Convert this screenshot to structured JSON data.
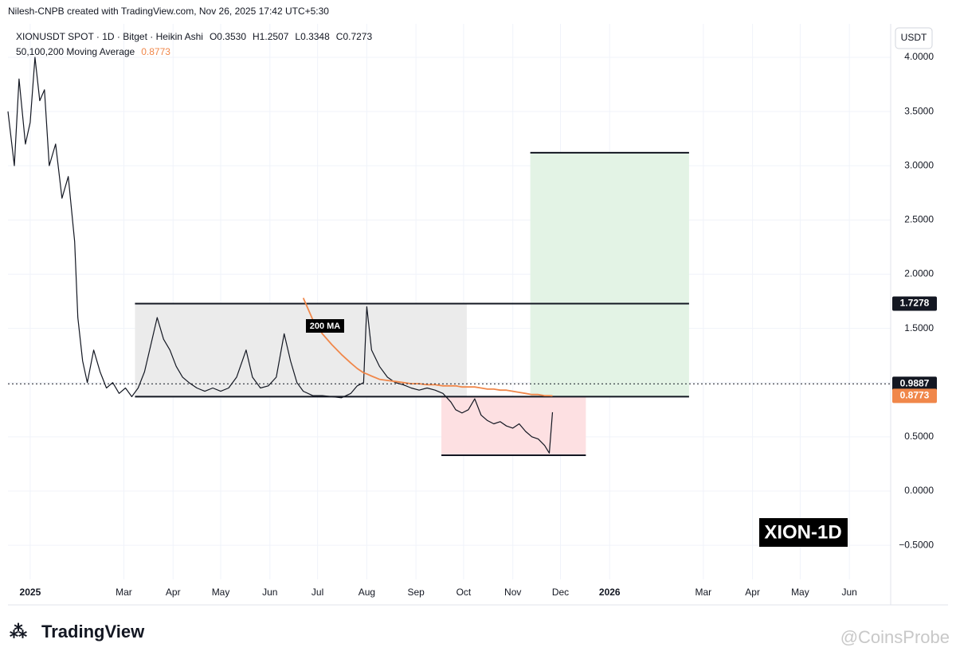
{
  "chart_data": {
    "type": "line",
    "header": "Nilesh-CNPB created with TradingView.com, Nov 26, 2025 17:42 UTC+5:30",
    "symbol": "XIONUSDT SPOT · 1D · Bitget · Heikin Ashi",
    "ohlc": [
      "O0.3530",
      "H1.2507",
      "L0.3348",
      "C0.7273"
    ],
    "indicator": "50,100,200 Moving Average",
    "indicator_value": 0.8773,
    "currency": "USDT",
    "annotation": "200 MA",
    "tag": "XION-1D",
    "logo": "TradingView",
    "watermark": "@CoinsProbe",
    "x": [
      -14,
      -10,
      -7,
      -3,
      0,
      3,
      6,
      9,
      12,
      16,
      20,
      24,
      28,
      30,
      33,
      36,
      40,
      44,
      48,
      52,
      56,
      60,
      64,
      68,
      72,
      76,
      80,
      84,
      88,
      92,
      96,
      100,
      105,
      110,
      115,
      120,
      125,
      130,
      136,
      140,
      145,
      150,
      155,
      160,
      164,
      168,
      172,
      178,
      184,
      190,
      196,
      202,
      206,
      210,
      212,
      215,
      220,
      225,
      230,
      235,
      240,
      245,
      250,
      255,
      260,
      265,
      268,
      272,
      276,
      280,
      284,
      288,
      292,
      296,
      300,
      304,
      308,
      312,
      316,
      320,
      324,
      327,
      329
    ],
    "series": [
      {
        "color": "#131722",
        "values": [
          3.5,
          3.0,
          3.8,
          3.2,
          3.4,
          4.0,
          3.6,
          3.7,
          3.0,
          3.2,
          2.7,
          2.9,
          2.3,
          1.6,
          1.2,
          1.0,
          1.3,
          1.1,
          0.95,
          1.0,
          0.9,
          0.95,
          0.87,
          0.95,
          1.1,
          1.35,
          1.6,
          1.4,
          1.3,
          1.15,
          1.05,
          1.0,
          0.95,
          0.92,
          0.95,
          0.92,
          0.95,
          1.05,
          1.3,
          1.05,
          0.95,
          0.97,
          1.05,
          1.45,
          1.2,
          1.0,
          0.92,
          0.88,
          0.88,
          0.87,
          0.86,
          0.9,
          0.97,
          1.0,
          1.7,
          1.3,
          1.15,
          1.05,
          1.0,
          0.98,
          0.95,
          0.93,
          0.95,
          0.93,
          0.9,
          0.82,
          0.75,
          0.72,
          0.75,
          0.85,
          0.7,
          0.65,
          0.62,
          0.64,
          0.6,
          0.58,
          0.62,
          0.55,
          0.5,
          0.48,
          0.42,
          0.35,
          0.7273
        ]
      },
      {
        "name": "200 MA",
        "color": "#f0874a",
        "x": [
          172,
          178,
          184,
          190,
          196,
          202,
          206,
          210,
          212,
          215,
          220,
          225,
          230,
          235,
          240,
          245,
          250,
          255,
          260,
          265,
          268,
          272,
          276,
          280,
          284,
          288,
          292,
          296,
          300,
          304,
          308,
          312,
          316,
          320,
          324,
          327,
          329
        ],
        "values": [
          1.78,
          1.58,
          1.45,
          1.35,
          1.26,
          1.18,
          1.13,
          1.09,
          1.08,
          1.06,
          1.03,
          1.02,
          1.01,
          1.0,
          0.99,
          0.99,
          0.98,
          0.98,
          0.97,
          0.97,
          0.97,
          0.96,
          0.96,
          0.96,
          0.95,
          0.94,
          0.94,
          0.93,
          0.93,
          0.92,
          0.91,
          0.9,
          0.89,
          0.89,
          0.88,
          0.88,
          0.8773
        ]
      }
    ],
    "zones": [
      {
        "x": [
          66,
          275
        ],
        "y": [
          0.87,
          1.7278
        ],
        "color": "#ebebeb"
      },
      {
        "x": [
          259,
          350
        ],
        "y": [
          0.33,
          0.87
        ],
        "color": "#fde0e2"
      },
      {
        "x": [
          315,
          415
        ],
        "y": [
          0.87,
          3.12
        ],
        "color": "#e3f3e5"
      }
    ],
    "levels": [
      {
        "x": [
          66,
          415
        ],
        "value": 1.7278
      },
      {
        "x": [
          66,
          415
        ],
        "value": 0.87
      },
      {
        "x": [
          259,
          350
        ],
        "value": 0.33
      },
      {
        "x": [
          315,
          415
        ],
        "value": 3.12
      }
    ],
    "price_labels": [
      {
        "value": 1.7278,
        "color": "#131722"
      },
      {
        "value": 0.9887,
        "color": "#131722",
        "line": "dotted"
      },
      {
        "value": 0.8773,
        "color": "#f0874a"
      }
    ],
    "xlim": [
      -14,
      542
    ],
    "ylim": [
      -0.815,
      4.308
    ],
    "xticks": [
      {
        "value": 0,
        "label": "2025"
      },
      {
        "value": 59,
        "label": "Mar"
      },
      {
        "value": 90,
        "label": "Apr"
      },
      {
        "value": 120,
        "label": "May"
      },
      {
        "value": 151,
        "label": "Jun"
      },
      {
        "value": 181,
        "label": "Jul"
      },
      {
        "value": 212,
        "label": "Aug"
      },
      {
        "value": 243,
        "label": "Sep"
      },
      {
        "value": 273,
        "label": "Oct"
      },
      {
        "value": 304,
        "label": "Nov"
      },
      {
        "value": 334,
        "label": "Dec"
      },
      {
        "value": 365,
        "label": "2026"
      },
      {
        "value": 424,
        "label": "Mar"
      },
      {
        "value": 455,
        "label": "Apr"
      },
      {
        "value": 485,
        "label": "May"
      },
      {
        "value": 516,
        "label": "Jun"
      }
    ],
    "yticks": [
      {
        "value": -0.5,
        "label": "−0.5000"
      },
      {
        "value": 0,
        "label": "0.0000"
      },
      {
        "value": 0.5,
        "label": "0.5000"
      },
      {
        "value": 1,
        "label": "1.0000"
      },
      {
        "value": 1.5,
        "label": "1.5000"
      },
      {
        "value": 2,
        "label": "2.0000"
      },
      {
        "value": 2.5,
        "label": "2.5000"
      },
      {
        "value": 3,
        "label": "3.0000"
      },
      {
        "value": 3.5,
        "label": "3.5000"
      },
      {
        "value": 4,
        "label": "4.0000"
      }
    ],
    "grid": true
  }
}
